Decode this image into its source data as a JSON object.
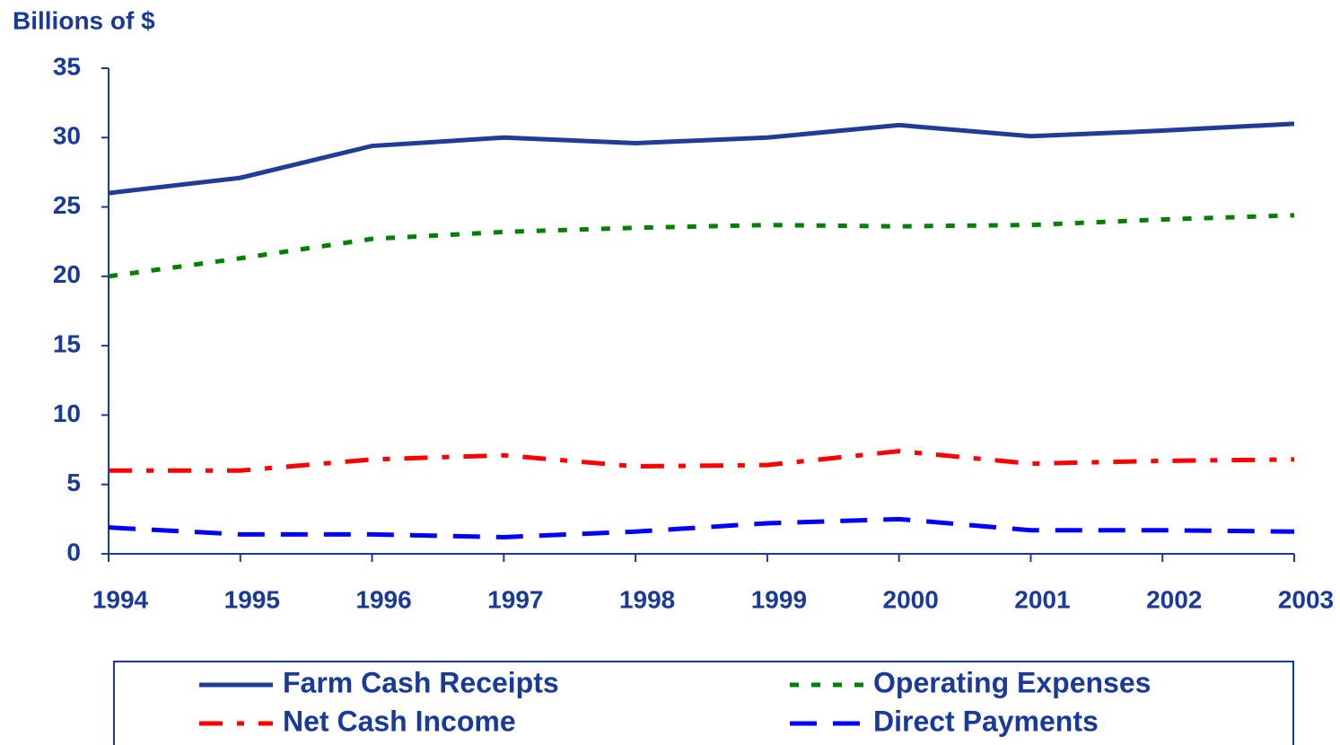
{
  "chart_data": {
    "type": "line",
    "y_label": "Billions of $",
    "categories": [
      "1994",
      "1995",
      "1996",
      "1997",
      "1998",
      "1999",
      "2000",
      "2001",
      "2002",
      "2003"
    ],
    "series": [
      {
        "name": "Farm Cash Receipts",
        "color": "#1f3c96",
        "dash": "solid",
        "values": [
          26.0,
          27.1,
          29.4,
          30.0,
          29.6,
          30.0,
          30.9,
          30.1,
          30.5,
          31.0
        ]
      },
      {
        "name": "Operating Expenses",
        "color": "#008000",
        "dash": "dotted",
        "values": [
          20.0,
          21.3,
          22.7,
          23.2,
          23.5,
          23.7,
          23.6,
          23.7,
          24.1,
          24.4
        ]
      },
      {
        "name": "Net Cash Income",
        "color": "#ff0000",
        "dash": "dashdot",
        "values": [
          6.0,
          6.0,
          6.8,
          7.1,
          6.3,
          6.4,
          7.4,
          6.5,
          6.7,
          6.8
        ]
      },
      {
        "name": "Direct Payments",
        "color": "#0000ff",
        "dash": "dashed",
        "values": [
          1.9,
          1.4,
          1.4,
          1.2,
          1.6,
          2.2,
          2.5,
          1.7,
          1.7,
          1.6
        ]
      }
    ],
    "ylim": [
      0,
      35
    ],
    "yticks": [
      0,
      5,
      10,
      15,
      20,
      25,
      30,
      35
    ],
    "grid": false
  }
}
